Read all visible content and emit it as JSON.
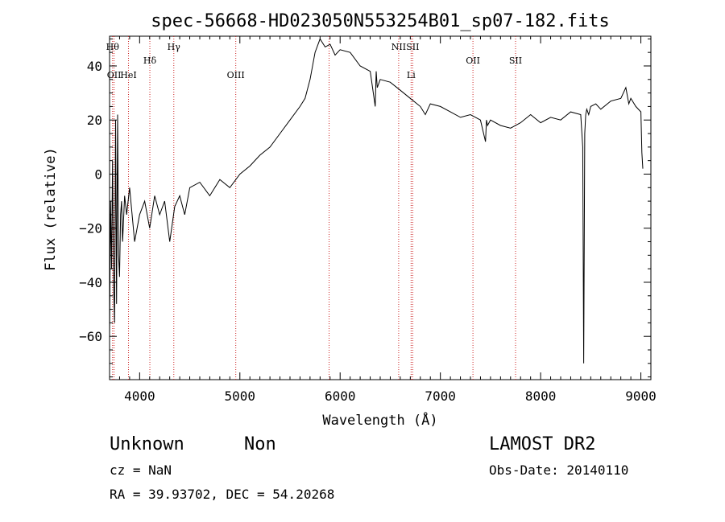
{
  "chart_data": {
    "type": "line",
    "title": "spec-56668-HD023050N553254B01_sp07-182.fits",
    "xlabel": "Wavelength (Å)",
    "ylabel": "Flux (relative)",
    "xlim": [
      3700,
      9100
    ],
    "ylim": [
      -76,
      51
    ],
    "x_ticks": [
      4000,
      5000,
      6000,
      7000,
      8000,
      9000
    ],
    "y_ticks": [
      -60,
      -40,
      -20,
      0,
      20,
      40
    ],
    "grid": false,
    "series": [
      {
        "x": [
          3700,
          3710,
          3720,
          3730,
          3740,
          3750,
          3760,
          3770,
          3780,
          3790,
          3800,
          3810,
          3820,
          3830,
          3850,
          3870,
          3900,
          3950,
          4000,
          4050,
          4100,
          4150,
          4200,
          4250,
          4300,
          4350,
          4400,
          4450,
          4500,
          4600,
          4700,
          4800,
          4900,
          5000,
          5100,
          5200,
          5300,
          5400,
          5500,
          5600,
          5650,
          5700,
          5750,
          5800,
          5850,
          5900,
          5950,
          6000,
          6100,
          6200,
          6300,
          6350,
          6360,
          6370,
          6400,
          6500,
          6600,
          6700,
          6800,
          6850,
          6900,
          7000,
          7100,
          7200,
          7300,
          7400,
          7450,
          7460,
          7470,
          7500,
          7600,
          7700,
          7800,
          7900,
          8000,
          8100,
          8200,
          8300,
          8400,
          8420,
          8430,
          8440,
          8450,
          8460,
          8480,
          8500,
          8550,
          8600,
          8700,
          8800,
          8850,
          8880,
          8900,
          8950,
          9000,
          9010,
          9020
        ],
        "y": [
          -60,
          -10,
          -35,
          5,
          -40,
          -55,
          20,
          -48,
          22,
          -30,
          -38,
          -15,
          -10,
          -25,
          -8,
          -15,
          -5,
          -25,
          -15,
          -10,
          -20,
          -8,
          -15,
          -10,
          -25,
          -12,
          -8,
          -15,
          -5,
          -3,
          -8,
          -2,
          -5,
          0,
          3,
          7,
          10,
          15,
          20,
          25,
          28,
          35,
          45,
          50,
          47,
          48,
          44,
          46,
          45,
          40,
          38,
          25,
          38,
          32,
          35,
          34,
          31,
          28,
          25,
          22,
          26,
          25,
          23,
          21,
          22,
          20,
          12,
          20,
          18,
          20,
          18,
          17,
          19,
          22,
          19,
          21,
          20,
          23,
          22,
          10,
          -70,
          15,
          22,
          24,
          22,
          25,
          26,
          24,
          27,
          28,
          32,
          26,
          28,
          25,
          23,
          8,
          2
        ]
      }
    ],
    "lines": [
      {
        "x": 3730,
        "label": "Hθ",
        "row": 1
      },
      {
        "x": 3745,
        "label": "OII",
        "row": 3
      },
      {
        "x": 3889,
        "label": "HeI",
        "row": 3
      },
      {
        "x": 4102,
        "label": "Hδ",
        "row": 2
      },
      {
        "x": 4341,
        "label": "Hγ",
        "row": 1
      },
      {
        "x": 4959,
        "label": "OIII",
        "row": 3
      },
      {
        "x": 5890,
        "label": "",
        "row": 0
      },
      {
        "x": 6584,
        "label": "NII",
        "row": 1
      },
      {
        "x": 6708,
        "label": "Li",
        "row": 3
      },
      {
        "x": 6724,
        "label": "SII",
        "row": 1
      },
      {
        "x": 7325,
        "label": "OII",
        "row": 2
      },
      {
        "x": 7750,
        "label": "SII",
        "row": 2
      }
    ]
  },
  "info": {
    "object_class": "Unknown",
    "object_subclass": "Non",
    "survey": "LAMOST DR2",
    "cz": "cz = NaN",
    "obs_date": "Obs-Date: 20140110",
    "coords": "RA =  39.93702, DEC =  54.20268"
  }
}
